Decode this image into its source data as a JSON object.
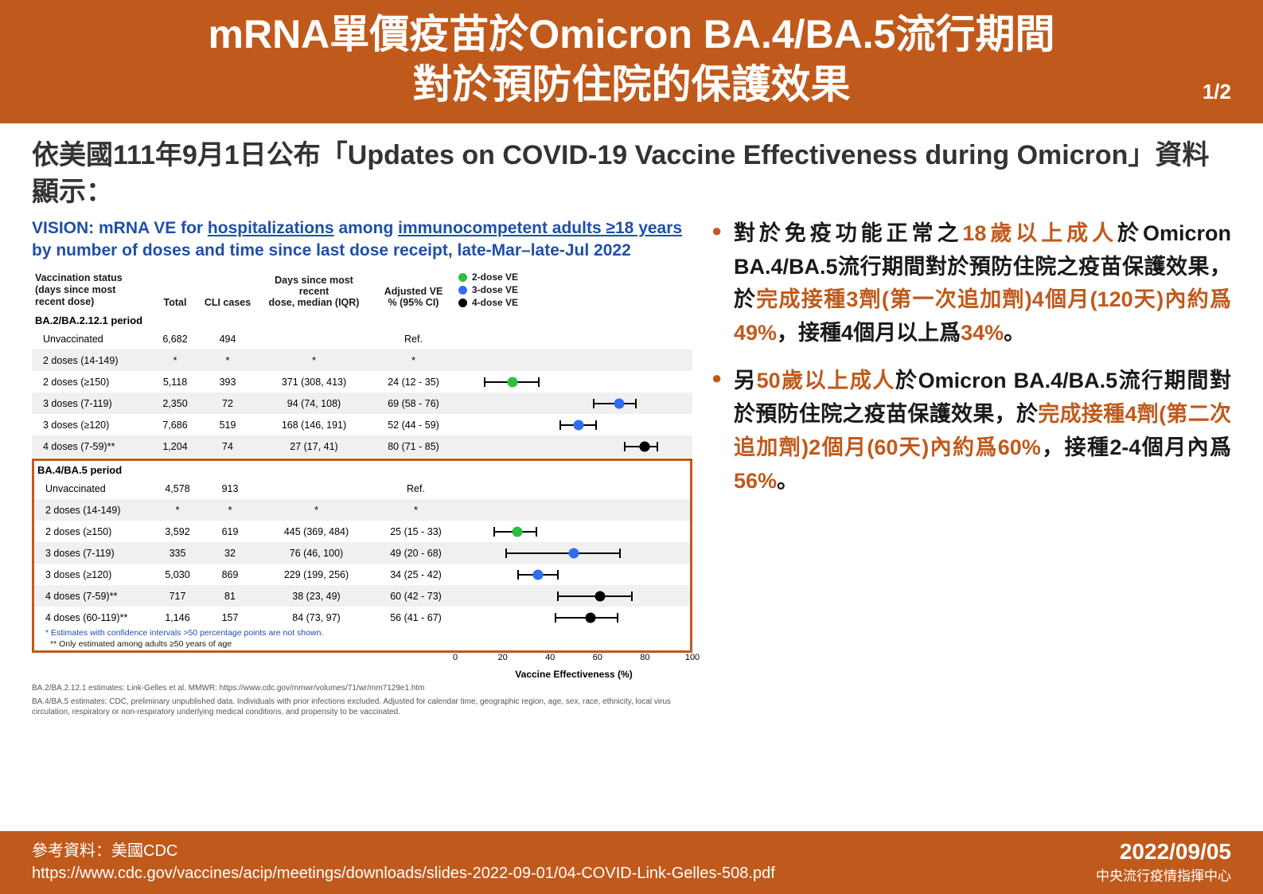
{
  "colors": {
    "brand": "#c05a1c",
    "title_blue": "#1f4fa8",
    "dose2": "#2fbf3f",
    "dose3": "#2f6fef",
    "dose4": "#000000",
    "stripe": "#f0f0f0"
  },
  "header": {
    "title": "mRNA單價疫苗於Omicron BA.4/BA.5流行期間\n對於預防住院的保護效果",
    "page": "1/2"
  },
  "intro": "依美國111年9月1日公布「Updates on COVID-19 Vaccine Effectiveness during Omicron」資料顯示：",
  "chart": {
    "title_pre": "VISION: mRNA VE for ",
    "title_u1": "hospitalizations",
    "title_mid": " among ",
    "title_u2": "immunocompetent adults ≥18 years",
    "title_post": " by number of doses and time since last dose receipt, late-Mar–late-Jul 2022",
    "col_headers": {
      "status": "Vaccination status\n(days since most\nrecent dose)",
      "total": "Total",
      "cli": "CLI cases",
      "days": "Days since most recent\ndose, median (IQR)",
      "ve": "Adjusted VE\n% (95% CI)"
    },
    "legend": [
      {
        "label": "2-dose VE",
        "color": "#2fbf3f"
      },
      {
        "label": "3-dose VE",
        "color": "#2f6fef"
      },
      {
        "label": "4-dose VE",
        "color": "#000000"
      }
    ],
    "xaxis": {
      "min": 0,
      "max": 100,
      "step": 20,
      "label": "Vaccine Effectiveness (%)"
    },
    "section1": {
      "title": "BA.2/BA.2.12.1 period",
      "rows": [
        {
          "status": "Unvaccinated",
          "total": "6,682",
          "cli": "494",
          "days": "",
          "ve": "Ref.",
          "pt": null,
          "lo": null,
          "hi": null,
          "dose": null,
          "stripe": false
        },
        {
          "status": "2 doses (14-149)",
          "total": "*",
          "cli": "*",
          "days": "*",
          "ve": "*",
          "pt": null,
          "lo": null,
          "hi": null,
          "dose": null,
          "stripe": true
        },
        {
          "status": "2 doses (≥150)",
          "total": "5,118",
          "cli": "393",
          "days": "371 (308, 413)",
          "ve": "24 (12 - 35)",
          "pt": 24,
          "lo": 12,
          "hi": 35,
          "dose": 2,
          "stripe": false
        },
        {
          "status": "3 doses (7-119)",
          "total": "2,350",
          "cli": "72",
          "days": "94 (74, 108)",
          "ve": "69 (58 - 76)",
          "pt": 69,
          "lo": 58,
          "hi": 76,
          "dose": 3,
          "stripe": true
        },
        {
          "status": "3 doses (≥120)",
          "total": "7,686",
          "cli": "519",
          "days": "168 (146, 191)",
          "ve": "52 (44 - 59)",
          "pt": 52,
          "lo": 44,
          "hi": 59,
          "dose": 3,
          "stripe": false
        },
        {
          "status": "4 doses (7-59)**",
          "total": "1,204",
          "cli": "74",
          "days": "27 (17, 41)",
          "ve": "80 (71 - 85)",
          "pt": 80,
          "lo": 71,
          "hi": 85,
          "dose": 4,
          "stripe": true
        }
      ]
    },
    "section2": {
      "title": "BA.4/BA.5 period",
      "rows": [
        {
          "status": "Unvaccinated",
          "total": "4,578",
          "cli": "913",
          "days": "",
          "ve": "Ref.",
          "pt": null,
          "lo": null,
          "hi": null,
          "dose": null,
          "stripe": false
        },
        {
          "status": "2 doses (14-149)",
          "total": "*",
          "cli": "*",
          "days": "*",
          "ve": "*",
          "pt": null,
          "lo": null,
          "hi": null,
          "dose": null,
          "stripe": true
        },
        {
          "status": "2 doses (≥150)",
          "total": "3,592",
          "cli": "619",
          "days": "445 (369, 484)",
          "ve": "25 (15 - 33)",
          "pt": 25,
          "lo": 15,
          "hi": 33,
          "dose": 2,
          "stripe": false
        },
        {
          "status": "3 doses (7-119)",
          "total": "335",
          "cli": "32",
          "days": "76 (46, 100)",
          "ve": "49 (20 - 68)",
          "pt": 49,
          "lo": 20,
          "hi": 68,
          "dose": 3,
          "stripe": true
        },
        {
          "status": "3 doses (≥120)",
          "total": "5,030",
          "cli": "869",
          "days": "229 (199, 256)",
          "ve": "34 (25 - 42)",
          "pt": 34,
          "lo": 25,
          "hi": 42,
          "dose": 3,
          "stripe": false
        },
        {
          "status": "4 doses (7-59)**",
          "total": "717",
          "cli": "81",
          "days": "38 (23, 49)",
          "ve": "60 (42 - 73)",
          "pt": 60,
          "lo": 42,
          "hi": 73,
          "dose": 4,
          "stripe": true
        },
        {
          "status": "4 doses (60-119)**",
          "total": "1,146",
          "cli": "157",
          "days": "84 (73, 97)",
          "ve": "56 (41 - 67)",
          "pt": 56,
          "lo": 41,
          "hi": 67,
          "dose": 4,
          "stripe": false
        }
      ]
    },
    "footnotes": {
      "star": "* Estimates with confidence intervals >50 percentage points are not shown.",
      "star2": "** Only estimated among adults ≥50 years of age",
      "src1": "BA.2/BA.2.12.1 estimates: Link-Gelles et al. MMWR: https://www.cdc.gov/mmwr/volumes/71/wr/mm7129e1.htm",
      "src2": "BA.4/BA.5 estimates: CDC, preliminary unpublished data. Individuals with prior infections excluded. Adjusted for calendar time, geographic region, age, sex, race, ethnicity, local virus circulation, respiratory or non-respiratory underlying medical conditions, and propensity to be vaccinated."
    }
  },
  "bullets": [
    {
      "segments": [
        {
          "t": "對於免疫功能正常之",
          "hl": false
        },
        {
          "t": "18歲以上成人",
          "hl": true
        },
        {
          "t": "於Omicron BA.4/BA.5流行期間對於預防住院之疫苗保護效果，於",
          "hl": false
        },
        {
          "t": "完成接種3劑(第一次追加劑)4個月(120天)內約爲49%",
          "hl": true
        },
        {
          "t": "，接種4個月以上爲",
          "hl": false
        },
        {
          "t": "34%",
          "hl": true
        },
        {
          "t": "。",
          "hl": false
        }
      ]
    },
    {
      "segments": [
        {
          "t": "另",
          "hl": false
        },
        {
          "t": "50歲以上成人",
          "hl": true
        },
        {
          "t": "於Omicron BA.4/BA.5流行期間對於預防住院之疫苗保護效果，於",
          "hl": false
        },
        {
          "t": "完成接種4劑(第二次追加劑)2個月(60天)內約爲60%",
          "hl": true
        },
        {
          "t": "，接種2-4個月內爲",
          "hl": false
        },
        {
          "t": "56%",
          "hl": true
        },
        {
          "t": "。",
          "hl": false
        }
      ]
    }
  ],
  "footer": {
    "ref_label": "參考資料：美國CDC",
    "ref_url": "https://www.cdc.gov/vaccines/acip/meetings/downloads/slides-2022-09-01/04-COVID-Link-Gelles-508.pdf",
    "date": "2022/09/05",
    "org": "中央流行疫情指揮中心"
  }
}
